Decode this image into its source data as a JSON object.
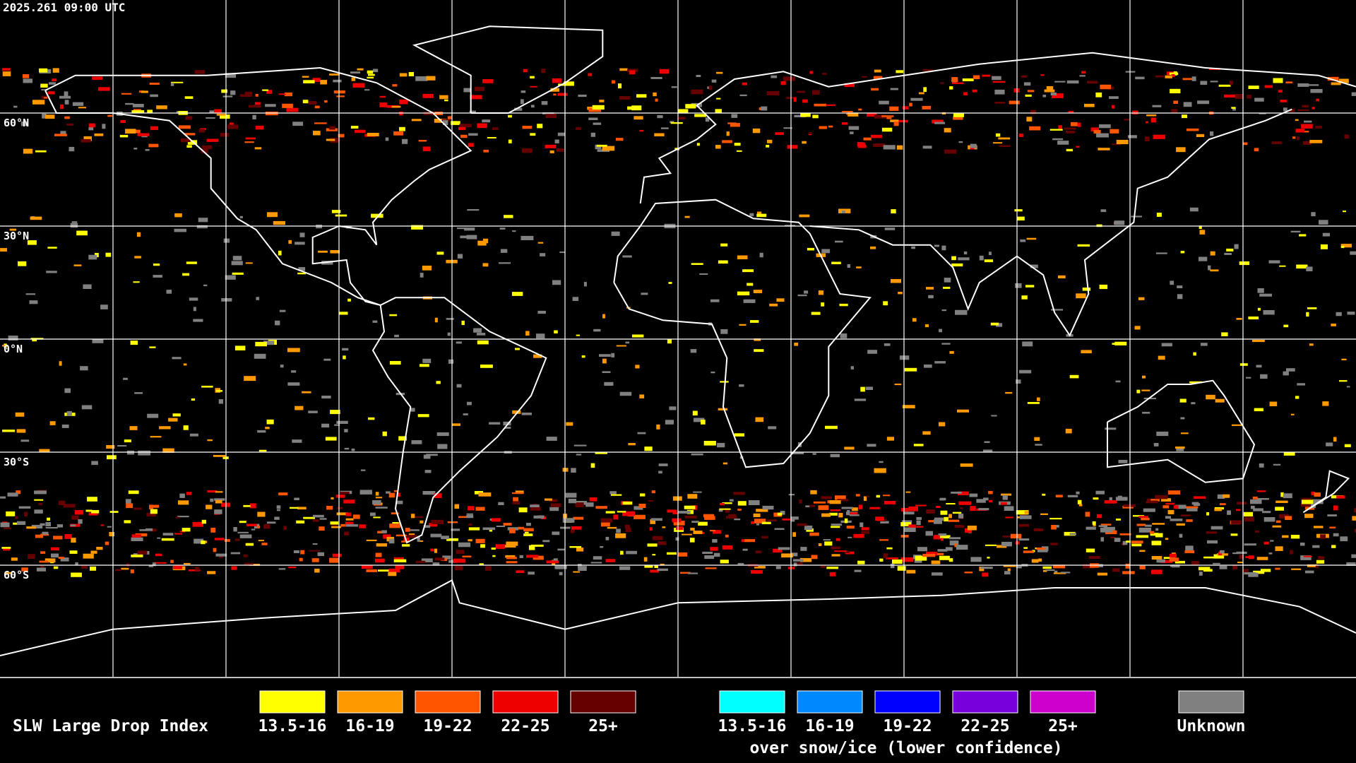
{
  "header": {
    "timestamp": "2025.261 09:00 UTC"
  },
  "grid": {
    "lat_labels": [
      "60°N",
      "30°N",
      "0°N",
      "30°S",
      "60°S"
    ]
  },
  "legend": {
    "title": "SLW Large Drop Index",
    "items": [
      {
        "label": "13.5-16",
        "color": "#ffff00"
      },
      {
        "label": "16-19",
        "color": "#ff9900"
      },
      {
        "label": "19-22",
        "color": "#ff5500"
      },
      {
        "label": "22-25",
        "color": "#ee0000"
      },
      {
        "label": "25+",
        "color": "#660000"
      }
    ],
    "snow_items": [
      {
        "label": "13.5-16",
        "color": "#00ffff"
      },
      {
        "label": "16-19",
        "color": "#0088ff"
      },
      {
        "label": "19-22",
        "color": "#0000ff"
      },
      {
        "label": "22-25",
        "color": "#7700dd"
      },
      {
        "label": "25+",
        "color": "#cc00cc"
      }
    ],
    "snow_caption": "over snow/ice (lower confidence)",
    "unknown": {
      "label": "Unknown",
      "color": "#808080"
    }
  }
}
